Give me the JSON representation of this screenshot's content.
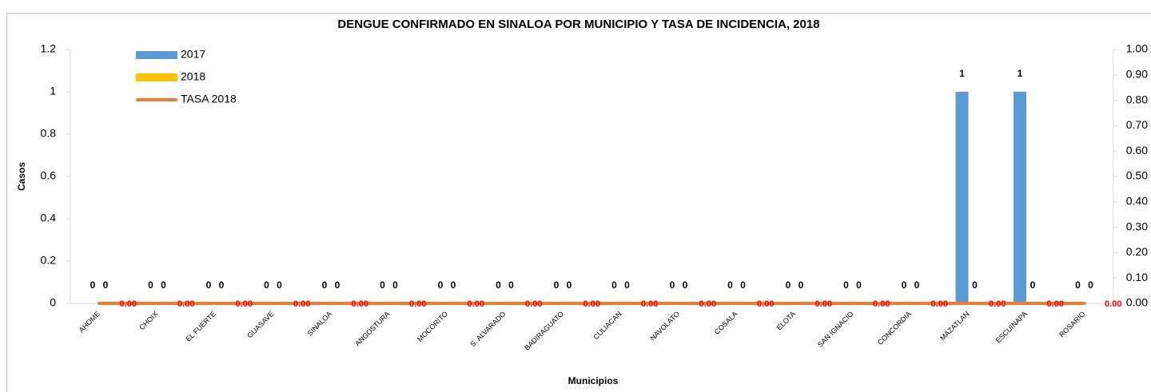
{
  "chart_data": {
    "type": "bar",
    "title": "DENGUE CONFIRMADO EN SINALOA POR MUNICIPIO Y TASA DE INCIDENCIA, 2018",
    "x_label": "Municipios",
    "y_label": "Casos",
    "categories": [
      "AHOME",
      "CHOIX",
      "EL FUERTE",
      "GUASAVE",
      "SINALOA",
      "ANGOSTURA",
      "MOCORITO",
      "S. ALVARADO",
      "BADIRAGUATO",
      "CULIACAN",
      "NAVOLATO",
      "COSALA",
      "ELOTA",
      "SAN IGNACIO",
      "CONCORDIA",
      "MAZATLAN",
      "ESCUINAPA",
      "ROSARIO"
    ],
    "series": [
      {
        "name": "2017",
        "color": "#5b9bd5",
        "values": [
          0,
          0,
          0,
          0,
          0,
          0,
          0,
          0,
          0,
          0,
          0,
          0,
          0,
          0,
          0,
          1,
          1,
          0
        ]
      },
      {
        "name": "2018",
        "color": "#ffc000",
        "values": [
          0,
          0,
          0,
          0,
          0,
          0,
          0,
          0,
          0,
          0,
          0,
          0,
          0,
          0,
          0,
          0,
          0,
          0
        ]
      },
      {
        "name": "TASA 2018",
        "color": "#ed7d31",
        "axis": "y2",
        "type": "line",
        "values": [
          0,
          0,
          0,
          0,
          0,
          0,
          0,
          0,
          0,
          0,
          0,
          0,
          0,
          0,
          0,
          0,
          0,
          0
        ],
        "value_labels": [
          "0.00",
          "0.00",
          "0.00",
          "0.00",
          "0.00",
          "0.00",
          "0.00",
          "0.00",
          "0.00",
          "0.00",
          "0.00",
          "0.00",
          "0.00",
          "0.00",
          "0.00",
          "0.00",
          "0.00",
          "0.00"
        ]
      }
    ],
    "ylim": [
      0,
      1.2
    ],
    "yticks": [
      0,
      0.2,
      0.4,
      0.6,
      0.8,
      1,
      1.2
    ],
    "y2lim": [
      0,
      1
    ],
    "y2ticks": [
      {
        "value": 0,
        "label": "0.00"
      },
      {
        "value": 0.1,
        "label": "0.10"
      },
      {
        "value": 0.2,
        "label": "0.20"
      },
      {
        "value": 0.3,
        "label": "0.30"
      },
      {
        "value": 0.4,
        "label": "0.40"
      },
      {
        "value": 0.5,
        "label": "0.50"
      },
      {
        "value": 0.6,
        "label": "0.60"
      },
      {
        "value": 0.7,
        "label": "0.70"
      },
      {
        "value": 0.8,
        "label": "0.80"
      },
      {
        "value": 0.9,
        "label": "0.90"
      },
      {
        "value": 1,
        "label": "1.00"
      }
    ],
    "legend": "top-left"
  }
}
